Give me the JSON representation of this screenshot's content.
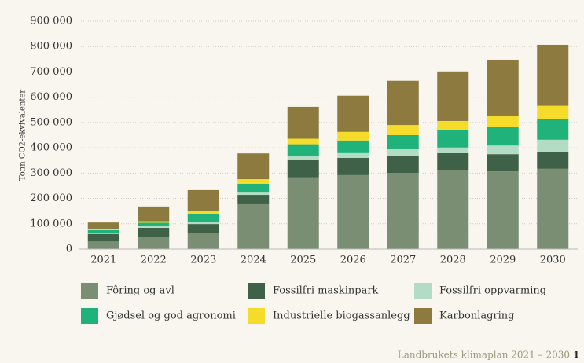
{
  "chart_data": {
    "type": "stacked_bar",
    "y_label": "Tonn CO2-ekvivalenter",
    "categories": [
      "2021",
      "2022",
      "2023",
      "2024",
      "2025",
      "2026",
      "2027",
      "2028",
      "2029",
      "2030"
    ],
    "series": [
      {
        "name": "Fôring og avl",
        "color": "#7a8e74",
        "values": [
          30000,
          47000,
          65000,
          177000,
          283000,
          292000,
          301000,
          311000,
          307000,
          317000
        ]
      },
      {
        "name": "Fossilfri maskinpark",
        "color": "#3f6147",
        "values": [
          30000,
          37000,
          34000,
          37000,
          68000,
          68000,
          68000,
          68000,
          68000,
          65000
        ]
      },
      {
        "name": "Fossilfri oppvarming",
        "color": "#b2dcc4",
        "values": [
          5000,
          8000,
          9000,
          9000,
          16000,
          19000,
          25000,
          22000,
          34000,
          50000
        ]
      },
      {
        "name": "Gjødsel og god agronomi",
        "color": "#1fb27a",
        "values": [
          10000,
          12000,
          31000,
          35000,
          47000,
          50000,
          56000,
          68000,
          75000,
          81000
        ]
      },
      {
        "name": "Industrielle biogassanlegg",
        "color": "#f5dc2b",
        "values": [
          5000,
          6000,
          12000,
          18000,
          22000,
          34000,
          40000,
          37000,
          43000,
          53000
        ]
      },
      {
        "name": "Karbonlagring",
        "color": "#8c7a3e",
        "values": [
          25000,
          58000,
          82000,
          102000,
          126000,
          143000,
          175000,
          196000,
          221000,
          241000
        ]
      }
    ],
    "ylim": [
      0,
      900000
    ],
    "yticks": [
      0,
      {
        "value": 100000,
        "label": "100 000"
      },
      {
        "value": 200000,
        "label": "200 000"
      },
      {
        "value": 300000,
        "label": "300 000"
      },
      {
        "value": 400000,
        "label": "400 000"
      },
      {
        "value": 500000,
        "label": "500 000"
      },
      {
        "value": 600000,
        "label": "600 000"
      },
      {
        "value": 700000,
        "label": "700 000"
      },
      {
        "value": 800000,
        "label": "800 000"
      },
      {
        "value": 900000,
        "label": "900 000"
      }
    ],
    "grid": true
  },
  "footer": {
    "text": "Landbrukets klimaplan 2021 – 2030",
    "page": "1"
  }
}
